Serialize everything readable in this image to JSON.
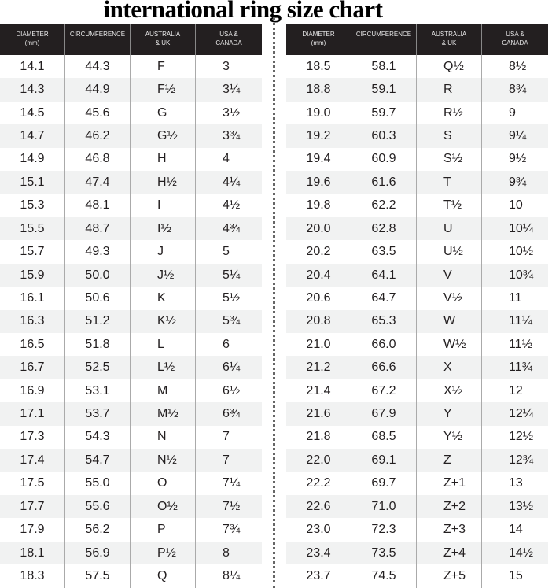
{
  "title": "international ring size chart",
  "headers": [
    [
      "DIAMETER",
      "(mm)"
    ],
    [
      "CIRCUMFERENCE",
      ""
    ],
    [
      "AUSTRALIA",
      "& UK"
    ],
    [
      "USA &",
      "CANADA"
    ]
  ],
  "tables": [
    {
      "rows": [
        [
          "14.1",
          "44.3",
          "F",
          "3"
        ],
        [
          "14.3",
          "44.9",
          "F½",
          "3¼"
        ],
        [
          "14.5",
          "45.6",
          "G",
          "3½"
        ],
        [
          "14.7",
          "46.2",
          "G½",
          "3¾"
        ],
        [
          "14.9",
          "46.8",
          "H",
          "4"
        ],
        [
          "15.1",
          "47.4",
          "H½",
          "4¼"
        ],
        [
          "15.3",
          "48.1",
          "I",
          "4½"
        ],
        [
          "15.5",
          "48.7",
          "I½",
          "4¾"
        ],
        [
          "15.7",
          "49.3",
          "J",
          "5"
        ],
        [
          "15.9",
          "50.0",
          "J½",
          "5¼"
        ],
        [
          "16.1",
          "50.6",
          "K",
          "5½"
        ],
        [
          "16.3",
          "51.2",
          "K½",
          "5¾"
        ],
        [
          "16.5",
          "51.8",
          "L",
          "6"
        ],
        [
          "16.7",
          "52.5",
          "L½",
          "6¼"
        ],
        [
          "16.9",
          "53.1",
          "M",
          "6½"
        ],
        [
          "17.1",
          "53.7",
          "M½",
          "6¾"
        ],
        [
          "17.3",
          "54.3",
          "N",
          "7"
        ],
        [
          "17.4",
          "54.7",
          "N½",
          "7"
        ],
        [
          "17.5",
          "55.0",
          "O",
          "7¼"
        ],
        [
          "17.7",
          "55.6",
          "O½",
          "7½"
        ],
        [
          "17.9",
          "56.2",
          "P",
          "7¾"
        ],
        [
          "18.1",
          "56.9",
          "P½",
          "8"
        ],
        [
          "18.3",
          "57.5",
          "Q",
          "8¼"
        ]
      ]
    },
    {
      "rows": [
        [
          "18.5",
          "58.1",
          "Q½",
          "8½"
        ],
        [
          "18.8",
          "59.1",
          "R",
          "8¾"
        ],
        [
          "19.0",
          "59.7",
          "R½",
          "9"
        ],
        [
          "19.2",
          "60.3",
          "S",
          "9¼"
        ],
        [
          "19.4",
          "60.9",
          "S½",
          "9½"
        ],
        [
          "19.6",
          "61.6",
          "T",
          "9¾"
        ],
        [
          "19.8",
          "62.2",
          "T½",
          "10"
        ],
        [
          "20.0",
          "62.8",
          "U",
          "10¼"
        ],
        [
          "20.2",
          "63.5",
          "U½",
          "10½"
        ],
        [
          "20.4",
          "64.1",
          "V",
          "10¾"
        ],
        [
          "20.6",
          "64.7",
          "V½",
          "11"
        ],
        [
          "20.8",
          "65.3",
          "W",
          "11¼"
        ],
        [
          "21.0",
          "66.0",
          "W½",
          "11½"
        ],
        [
          "21.2",
          "66.6",
          "X",
          "11¾"
        ],
        [
          "21.4",
          "67.2",
          "X½",
          "12"
        ],
        [
          "21.6",
          "67.9",
          "Y",
          "12¼"
        ],
        [
          "21.8",
          "68.5",
          "Y½",
          "12½"
        ],
        [
          "22.0",
          "69.1",
          "Z",
          "12¾"
        ],
        [
          "22.2",
          "69.7",
          "Z+1",
          "13"
        ],
        [
          "22.6",
          "71.0",
          "Z+2",
          "13½"
        ],
        [
          "23.0",
          "72.3",
          "Z+3",
          "14"
        ],
        [
          "23.4",
          "73.5",
          "Z+4",
          "14½"
        ],
        [
          "23.7",
          "74.5",
          "Z+5",
          "15"
        ]
      ]
    }
  ]
}
